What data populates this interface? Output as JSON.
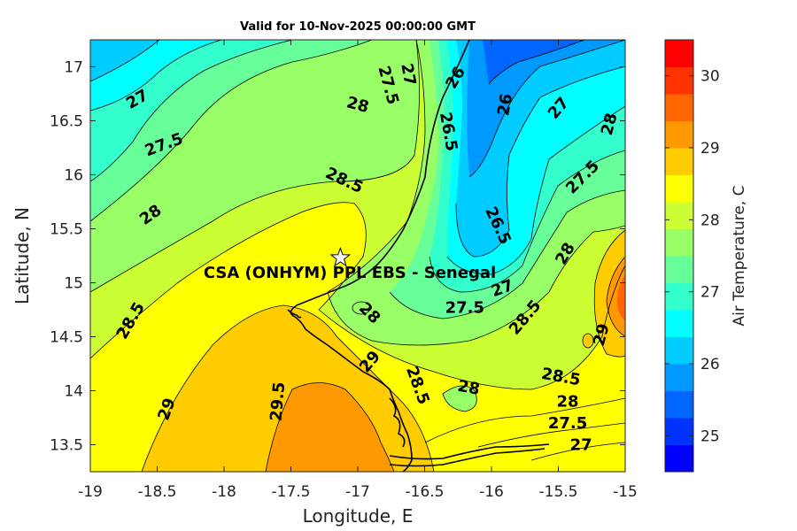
{
  "title": "Valid for 10-Nov-2025 00:00:00 GMT",
  "map": {
    "xlabel": "Longitude, E",
    "ylabel": "Latitude, N",
    "xlim": [
      -19,
      -15
    ],
    "ylim": [
      13.25,
      17.25
    ],
    "x_ticks": [
      "-19",
      "-18.5",
      "-18",
      "-17.5",
      "-17",
      "-16.5",
      "-16",
      "-15.5",
      "-15"
    ],
    "y_ticks": [
      "13.5",
      "14",
      "14.5",
      "15",
      "15.5",
      "16",
      "16.5",
      "17"
    ],
    "site": {
      "lon": -17.13,
      "lat": 15.23,
      "label": "CSA (ONHYM) PPL EBS  - Senegal"
    },
    "contour_labels": [
      {
        "text": "27",
        "lon": -18.65,
        "lat": 16.7,
        "rot": -30
      },
      {
        "text": "27.5",
        "lon": -18.45,
        "lat": 16.28,
        "rot": -20
      },
      {
        "text": "28",
        "lon": -18.55,
        "lat": 15.63,
        "rot": -35
      },
      {
        "text": "28",
        "lon": -17.0,
        "lat": 16.65,
        "rot": 15
      },
      {
        "text": "28.5",
        "lon": -17.1,
        "lat": 15.95,
        "rot": 25
      },
      {
        "text": "28.5",
        "lon": -18.7,
        "lat": 14.65,
        "rot": -60
      },
      {
        "text": "27.5",
        "lon": -16.77,
        "lat": 16.83,
        "rot": 75
      },
      {
        "text": "27",
        "lon": -16.62,
        "lat": 16.93,
        "rot": 80
      },
      {
        "text": "26",
        "lon": -16.27,
        "lat": 16.9,
        "rot": -60
      },
      {
        "text": "26.5",
        "lon": -16.32,
        "lat": 16.4,
        "rot": 80
      },
      {
        "text": "26",
        "lon": -15.9,
        "lat": 16.65,
        "rot": -80
      },
      {
        "text": "27",
        "lon": -15.5,
        "lat": 16.62,
        "rot": -50
      },
      {
        "text": "28",
        "lon": -15.12,
        "lat": 16.47,
        "rot": -75
      },
      {
        "text": "27.5",
        "lon": -15.32,
        "lat": 15.98,
        "rot": -45
      },
      {
        "text": "26.5",
        "lon": -15.95,
        "lat": 15.53,
        "rot": 65
      },
      {
        "text": "28",
        "lon": -15.45,
        "lat": 15.27,
        "rot": -60
      },
      {
        "text": "27",
        "lon": -15.92,
        "lat": 14.95,
        "rot": -20
      },
      {
        "text": "27.5",
        "lon": -16.2,
        "lat": 14.77,
        "rot": 0
      },
      {
        "text": "28",
        "lon": -16.91,
        "lat": 14.72,
        "rot": 45
      },
      {
        "text": "28.5",
        "lon": -15.75,
        "lat": 14.68,
        "rot": -50
      },
      {
        "text": "29",
        "lon": -16.91,
        "lat": 14.27,
        "rot": -50
      },
      {
        "text": "28.5",
        "lon": -16.55,
        "lat": 14.05,
        "rot": 70
      },
      {
        "text": "28",
        "lon": -16.17,
        "lat": 14.03,
        "rot": 10
      },
      {
        "text": "28.5",
        "lon": -15.48,
        "lat": 14.13,
        "rot": 10
      },
      {
        "text": "28",
        "lon": -15.43,
        "lat": 13.9,
        "rot": 0
      },
      {
        "text": "27.5",
        "lon": -15.43,
        "lat": 13.7,
        "rot": 0
      },
      {
        "text": "27",
        "lon": -15.33,
        "lat": 13.5,
        "rot": 0
      },
      {
        "text": "29.5",
        "lon": -17.6,
        "lat": 13.9,
        "rot": -85
      },
      {
        "text": "29",
        "lon": -18.43,
        "lat": 13.83,
        "rot": -70
      },
      {
        "text": "29",
        "lon": -15.18,
        "lat": 14.52,
        "rot": -75
      }
    ]
  },
  "colorbar": {
    "label": "Air Temperature, C",
    "range": [
      24.5,
      30.5
    ],
    "ticks": [
      "25",
      "26",
      "27",
      "28",
      "29",
      "30"
    ],
    "tick_values": [
      25,
      26,
      27,
      28,
      29,
      30
    ],
    "colors": [
      "#0000ff",
      "#0033ff",
      "#0066ff",
      "#0099ff",
      "#00ccff",
      "#00ffff",
      "#33ffcc",
      "#66ff99",
      "#99ff66",
      "#ccff33",
      "#ffff00",
      "#ffcc00",
      "#ff9900",
      "#ff6600",
      "#ff3300",
      "#ff0000"
    ]
  }
}
